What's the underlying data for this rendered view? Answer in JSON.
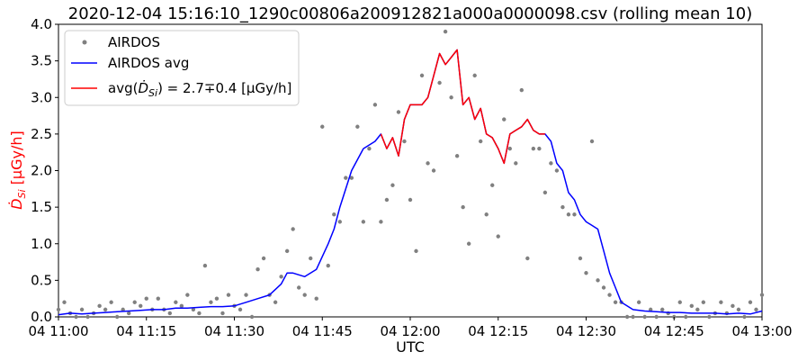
{
  "chart_data": {
    "type": "line",
    "title": "2020-12-04 15:16:10_1290c00806a200912821a000a0000098.csv (rolling mean 10)",
    "xlabel": "UTC",
    "ylabel": "Ḋ",
    "ylabel_sub": "Si",
    "ylabel_unit": " [µGy/h]",
    "xlim_minutes": [
      0,
      120
    ],
    "ylim": [
      0,
      4
    ],
    "grid": false,
    "legend_position": "upper-left",
    "x_ticks": [
      {
        "minute": 0,
        "label": "04 11:00"
      },
      {
        "minute": 15,
        "label": "04 11:15"
      },
      {
        "minute": 30,
        "label": "04 11:30"
      },
      {
        "minute": 45,
        "label": "04 11:45"
      },
      {
        "minute": 60,
        "label": "04 12:00"
      },
      {
        "minute": 75,
        "label": "04 12:15"
      },
      {
        "minute": 90,
        "label": "04 12:30"
      },
      {
        "minute": 105,
        "label": "04 12:45"
      },
      {
        "minute": 120,
        "label": "04 13:00"
      }
    ],
    "y_ticks": [
      {
        "value": 0,
        "label": "0.0"
      },
      {
        "value": 0.5,
        "label": "0.5"
      },
      {
        "value": 1,
        "label": "1.0"
      },
      {
        "value": 1.5,
        "label": "1.5"
      },
      {
        "value": 2,
        "label": "2.0"
      },
      {
        "value": 2.5,
        "label": "2.5"
      },
      {
        "value": 3,
        "label": "3.0"
      },
      {
        "value": 3.5,
        "label": "3.5"
      },
      {
        "value": 4,
        "label": "4.0"
      }
    ],
    "series": [
      {
        "name": "AIRDOS",
        "style": "scatter",
        "color": "#808080",
        "x_minutes": [
          0,
          1,
          2,
          3,
          4,
          5,
          6,
          7,
          8,
          9,
          10,
          11,
          12,
          13,
          14,
          15,
          16,
          17,
          18,
          19,
          20,
          21,
          22,
          23,
          24,
          25,
          26,
          27,
          28,
          29,
          30,
          31,
          32,
          33,
          34,
          35,
          36,
          37,
          38,
          39,
          40,
          41,
          42,
          43,
          44,
          45,
          46,
          47,
          48,
          49,
          50,
          51,
          52,
          53,
          54,
          55,
          56,
          57,
          58,
          59,
          60,
          61,
          62,
          63,
          64,
          65,
          66,
          67,
          68,
          69,
          70,
          71,
          72,
          73,
          74,
          75,
          76,
          77,
          78,
          79,
          80,
          81,
          82,
          83,
          84,
          85,
          86,
          87,
          88,
          89,
          90,
          91,
          92,
          93,
          94,
          95,
          96,
          97,
          98,
          99,
          100,
          101,
          102,
          103,
          104,
          105,
          106,
          107,
          108,
          109,
          110,
          111,
          112,
          113,
          114,
          115,
          116,
          117,
          118,
          119,
          120
        ],
        "y": [
          0.1,
          0.2,
          0.05,
          0.0,
          0.1,
          0.0,
          0.05,
          0.15,
          0.1,
          0.2,
          0.0,
          0.1,
          0.05,
          0.2,
          0.15,
          0.25,
          0.1,
          0.25,
          0.1,
          0.05,
          0.2,
          0.15,
          0.3,
          0.1,
          0.05,
          0.7,
          0.2,
          0.25,
          0.05,
          0.3,
          0.15,
          0.1,
          0.3,
          0.0,
          0.65,
          0.8,
          0.3,
          0.2,
          0.55,
          0.9,
          1.2,
          0.4,
          0.3,
          0.8,
          0.25,
          2.6,
          0.7,
          1.4,
          1.3,
          1.9,
          1.9,
          2.6,
          1.3,
          2.3,
          2.9,
          1.3,
          1.6,
          1.8,
          2.8,
          2.4,
          1.6,
          0.9,
          3.3,
          2.1,
          2.0,
          3.2,
          3.9,
          3.0,
          2.2,
          1.5,
          1.0,
          3.3,
          2.4,
          1.4,
          1.8,
          1.1,
          2.7,
          2.3,
          2.1,
          3.1,
          0.8,
          2.3,
          2.3,
          1.7,
          2.1,
          2.0,
          1.5,
          1.4,
          1.4,
          0.8,
          0.6,
          2.4,
          0.5,
          0.4,
          0.3,
          0.2,
          0.2,
          0.0,
          0.0,
          0.2,
          0.0,
          0.1,
          0.0,
          0.1,
          0.05,
          0.0,
          0.2,
          0.0,
          0.15,
          0.1,
          0.2,
          0.0,
          0.05,
          0.2,
          0.05,
          0.15,
          0.1,
          0.0,
          0.2,
          0.1,
          0.3
        ]
      },
      {
        "name": "AIRDOS avg",
        "style": "line",
        "color": "#0000ff",
        "x_minutes": [
          0,
          2,
          4,
          6,
          8,
          10,
          12,
          14,
          16,
          18,
          20,
          22,
          24,
          26,
          28,
          30,
          32,
          34,
          36,
          38,
          39,
          40,
          42,
          44,
          46,
          47,
          48,
          50,
          52,
          54,
          55,
          56,
          57,
          58,
          59,
          60,
          62,
          63,
          64,
          65,
          66,
          67,
          68,
          69,
          70,
          71,
          72,
          73,
          74,
          75,
          76,
          77,
          78,
          79,
          80,
          81,
          82,
          83,
          84,
          85,
          86,
          87,
          88,
          89,
          90,
          91,
          92,
          93,
          94,
          95,
          96,
          98,
          100,
          102,
          104,
          106,
          108,
          110,
          112,
          114,
          116,
          118,
          120
        ],
        "y": [
          0.03,
          0.05,
          0.04,
          0.05,
          0.06,
          0.07,
          0.08,
          0.09,
          0.1,
          0.1,
          0.12,
          0.12,
          0.13,
          0.14,
          0.14,
          0.15,
          0.2,
          0.25,
          0.3,
          0.45,
          0.6,
          0.6,
          0.55,
          0.65,
          1.0,
          1.2,
          1.5,
          2.0,
          2.3,
          2.4,
          2.5,
          2.3,
          2.45,
          2.2,
          2.7,
          2.9,
          2.9,
          3.0,
          3.3,
          3.6,
          3.45,
          3.55,
          3.65,
          2.9,
          3.0,
          2.7,
          2.85,
          2.5,
          2.45,
          2.3,
          2.1,
          2.5,
          2.55,
          2.6,
          2.7,
          2.55,
          2.5,
          2.5,
          2.4,
          2.1,
          2.0,
          1.7,
          1.6,
          1.4,
          1.3,
          1.25,
          1.2,
          0.9,
          0.6,
          0.4,
          0.2,
          0.1,
          0.08,
          0.07,
          0.06,
          0.06,
          0.05,
          0.05,
          0.05,
          0.04,
          0.05,
          0.04,
          0.08
        ]
      },
      {
        "name": "avg(Ḋ_Si) = 2.7∓0.4 [µGy/h]",
        "legend_pre": "avg(",
        "legend_dot": "Ḋ",
        "legend_sub": "Si",
        "legend_post": ") = 2.7∓0.4 [µGy/h]",
        "style": "line",
        "color": "#ff0000",
        "x_minutes": [
          55,
          56,
          57,
          58,
          59,
          60,
          62,
          63,
          64,
          65,
          66,
          67,
          68,
          69,
          70,
          71,
          72,
          73,
          74,
          75,
          76,
          77,
          78,
          79,
          80,
          81,
          82,
          83
        ],
        "y": [
          2.5,
          2.3,
          2.45,
          2.2,
          2.7,
          2.9,
          2.9,
          3.0,
          3.3,
          3.6,
          3.45,
          3.55,
          3.65,
          2.9,
          3.0,
          2.7,
          2.85,
          2.5,
          2.45,
          2.3,
          2.1,
          2.5,
          2.55,
          2.6,
          2.7,
          2.55,
          2.5,
          2.5
        ]
      }
    ]
  }
}
